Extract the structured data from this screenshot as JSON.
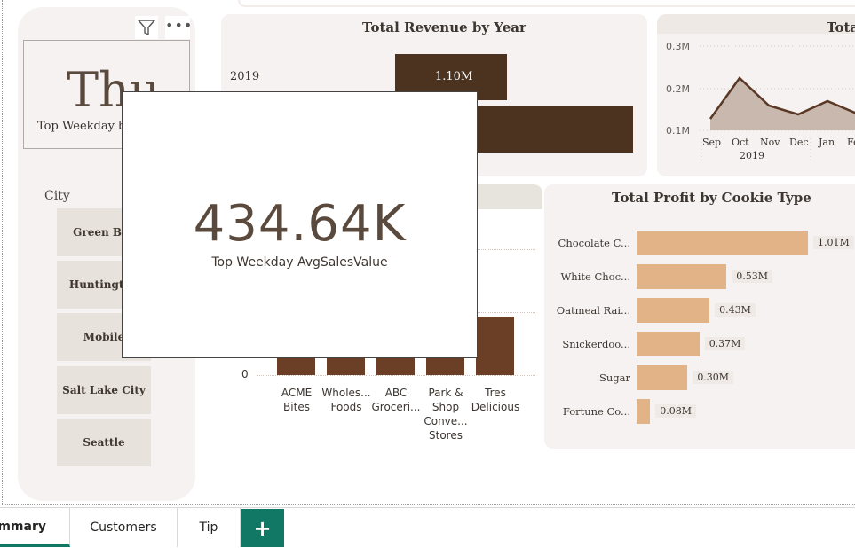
{
  "slicer": {
    "top_weekday_value": "Thu",
    "top_weekday_label": "Top Weekday by",
    "city_header": "City",
    "cities": [
      "Green Bay",
      "Huntington",
      "Mobile",
      "Salt Lake City",
      "Seattle"
    ]
  },
  "revenue_chart": {
    "title": "Total Revenue by Year",
    "year_label": "2019",
    "bar_value_label": "1.10M"
  },
  "line_chart": {
    "title": "Tota",
    "y_ticks": [
      "0.3M",
      "0.2M",
      "0.1M"
    ],
    "x_ticks": [
      "Sep",
      "Oct",
      "Nov",
      "Dec",
      "Jan",
      "Fe"
    ],
    "year_label": "2019"
  },
  "customer_chart": {
    "y_tick_zero": "0",
    "categories": [
      {
        "l1": "ACME",
        "l2": "Bites",
        "l3": "",
        "l4": ""
      },
      {
        "l1": "Wholes...",
        "l2": "Foods",
        "l3": "",
        "l4": ""
      },
      {
        "l1": "ABC",
        "l2": "Groceri...",
        "l3": "",
        "l4": ""
      },
      {
        "l1": "Park &",
        "l2": "Shop",
        "l3": "Conve...",
        "l4": "Stores"
      },
      {
        "l1": "Tres",
        "l2": "Delicious",
        "l3": "",
        "l4": ""
      }
    ]
  },
  "profit_chart": {
    "title": "Total Profit by Cookie Type",
    "items": [
      {
        "category": "Chocolate C...",
        "label": "1.01M",
        "value": 1.01
      },
      {
        "category": "White Choc...",
        "label": "0.53M",
        "value": 0.53
      },
      {
        "category": "Oatmeal Rai...",
        "label": "0.43M",
        "value": 0.43
      },
      {
        "category": "Snickerdoo...",
        "label": "0.37M",
        "value": 0.37
      },
      {
        "category": "Sugar",
        "label": "0.30M",
        "value": 0.3
      },
      {
        "category": "Fortune Co...",
        "label": "0.08M",
        "value": 0.08
      }
    ]
  },
  "popup": {
    "value": "434.64K",
    "label": "Top Weekday AvgSalesValue"
  },
  "tabs": {
    "summary": "ummary",
    "customers": "Customers",
    "tip": "Tip",
    "add": "+"
  },
  "colors": {
    "accent": "#117865",
    "revenue_bar": "#4c3320",
    "profit_bar": "#e2b386",
    "customer_bar": "#6b3f25",
    "line_fill": "#c9b8ad",
    "line_stroke": "#5a3826"
  },
  "icons": {
    "filter": "filter-icon",
    "more": "more-options-icon"
  }
}
